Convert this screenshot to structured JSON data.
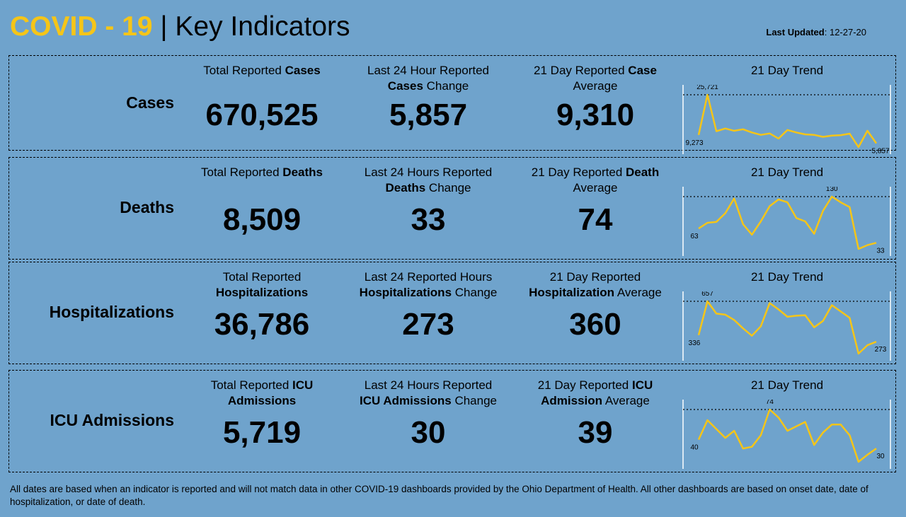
{
  "header": {
    "title_a": "COVID - 19",
    "separator": "|",
    "title_b": "Key Indicators",
    "updated": [
      {
        "text": "Last Updated",
        "bold": true
      },
      {
        "text": ": 12-27-20"
      }
    ]
  },
  "rows": [
    {
      "label": "Cases",
      "metrics": [
        {
          "label": [
            [
              {
                "text": "Total Reported "
              },
              {
                "text": "Cases",
                "bold": true
              }
            ]
          ],
          "value": "670,525"
        },
        {
          "label": [
            [
              {
                "text": "Last 24 Hour Reported"
              }
            ],
            [
              {
                "text": "Cases",
                "bold": true
              },
              {
                "text": " Change"
              }
            ]
          ],
          "value": "5,857"
        },
        {
          "label": [
            [
              {
                "text": "21 Day Reported "
              },
              {
                "text": "Case",
                "bold": true
              }
            ],
            [
              {
                "text": "Average"
              }
            ]
          ],
          "value": "9,310"
        }
      ],
      "chart_data": {
        "type": "line",
        "title": "21 Day Trend",
        "color": "#f5c518",
        "values": [
          9273,
          25721,
          10800,
          11900,
          11000,
          11600,
          10300,
          9300,
          9900,
          7800,
          11300,
          10300,
          9500,
          9300,
          8500,
          9000,
          9200,
          9800,
          4300,
          11000,
          5857
        ],
        "value_labels": [
          "9,273",
          "25,721",
          null,
          null,
          null,
          null,
          null,
          null,
          null,
          null,
          null,
          null,
          null,
          null,
          null,
          null,
          null,
          null,
          null,
          null,
          "5,857"
        ]
      }
    },
    {
      "label": "Deaths",
      "metrics": [
        {
          "label": [
            [
              {
                "text": "Total Reported "
              },
              {
                "text": "Deaths",
                "bold": true
              }
            ]
          ],
          "value": "8,509"
        },
        {
          "label": [
            [
              {
                "text": "Last 24 Hours Reported"
              }
            ],
            [
              {
                "text": "Deaths",
                "bold": true
              },
              {
                "text": " Change"
              }
            ]
          ],
          "value": "33"
        },
        {
          "label": [
            [
              {
                "text": "21 Day Reported "
              },
              {
                "text": "Death",
                "bold": true
              }
            ],
            [
              {
                "text": "Average"
              }
            ]
          ],
          "value": "74"
        }
      ],
      "chart_data": {
        "type": "line",
        "title": "21 Day Trend",
        "color": "#f5c518",
        "values": [
          63,
          75,
          77,
          95,
          126,
          72,
          50,
          78,
          110,
          124,
          118,
          85,
          78,
          52,
          100,
          130,
          118,
          108,
          20,
          28,
          33
        ],
        "value_labels": [
          "63",
          null,
          null,
          null,
          null,
          null,
          null,
          null,
          null,
          null,
          null,
          null,
          null,
          null,
          null,
          "130",
          null,
          null,
          null,
          null,
          "33"
        ]
      }
    },
    {
      "label": "Hospitalizations",
      "metrics": [
        {
          "label": [
            [
              {
                "text": "Total Reported"
              }
            ],
            [
              {
                "text": "Hospitalizations",
                "bold": true
              }
            ]
          ],
          "value": "36,786"
        },
        {
          "label": [
            [
              {
                "text": "Last 24 Reported Hours"
              }
            ],
            [
              {
                "text": "Hospitalizations",
                "bold": true
              },
              {
                "text": " Change"
              }
            ]
          ],
          "value": "273"
        },
        {
          "label": [
            [
              {
                "text": "21 Day Reported"
              }
            ],
            [
              {
                "text": "Hospitalization",
                "bold": true
              },
              {
                "text": " Average"
              }
            ]
          ],
          "value": "360"
        }
      ],
      "chart_data": {
        "type": "line",
        "title": "21 Day Trend",
        "color": "#f5c518",
        "values": [
          336,
          657,
          540,
          530,
          480,
          400,
          330,
          420,
          640,
          580,
          510,
          520,
          525,
          410,
          470,
          620,
          560,
          500,
          160,
          240,
          273
        ],
        "value_labels": [
          "336",
          "657",
          null,
          null,
          null,
          null,
          null,
          null,
          null,
          null,
          null,
          null,
          null,
          null,
          null,
          null,
          null,
          null,
          null,
          null,
          "273"
        ]
      }
    },
    {
      "label": "ICU Admissions",
      "metrics": [
        {
          "label": [
            [
              {
                "text": "Total Reported "
              },
              {
                "text": "ICU",
                "bold": true
              }
            ],
            [
              {
                "text": "Admissions",
                "bold": true
              }
            ]
          ],
          "value": "5,719"
        },
        {
          "label": [
            [
              {
                "text": "Last 24 Hours Reported"
              }
            ],
            [
              {
                "text": "ICU Admissions",
                "bold": true
              },
              {
                "text": " Change"
              }
            ]
          ],
          "value": "30"
        },
        {
          "label": [
            [
              {
                "text": "21 Day Reported "
              },
              {
                "text": "ICU",
                "bold": true
              }
            ],
            [
              {
                "text": "Admission",
                "bold": true
              },
              {
                "text": " Average"
              }
            ]
          ],
          "value": "39"
        }
      ],
      "chart_data": {
        "type": "line",
        "title": "21 Day Trend",
        "color": "#f5c518",
        "values": [
          40,
          62,
          52,
          42,
          50,
          30,
          32,
          45,
          74,
          65,
          50,
          55,
          60,
          34,
          48,
          57,
          57,
          45,
          15,
          23,
          30
        ],
        "value_labels": [
          "40",
          null,
          null,
          null,
          null,
          null,
          null,
          null,
          "74",
          null,
          null,
          null,
          null,
          null,
          null,
          null,
          null,
          null,
          null,
          null,
          "30"
        ]
      }
    }
  ],
  "footer": "All dates are based when an indicator is reported and will not match data in other COVID-19 dashboards provided by the Ohio Department of Health. All other dashboards are based on onset date, date of hospitalization, or date of death."
}
